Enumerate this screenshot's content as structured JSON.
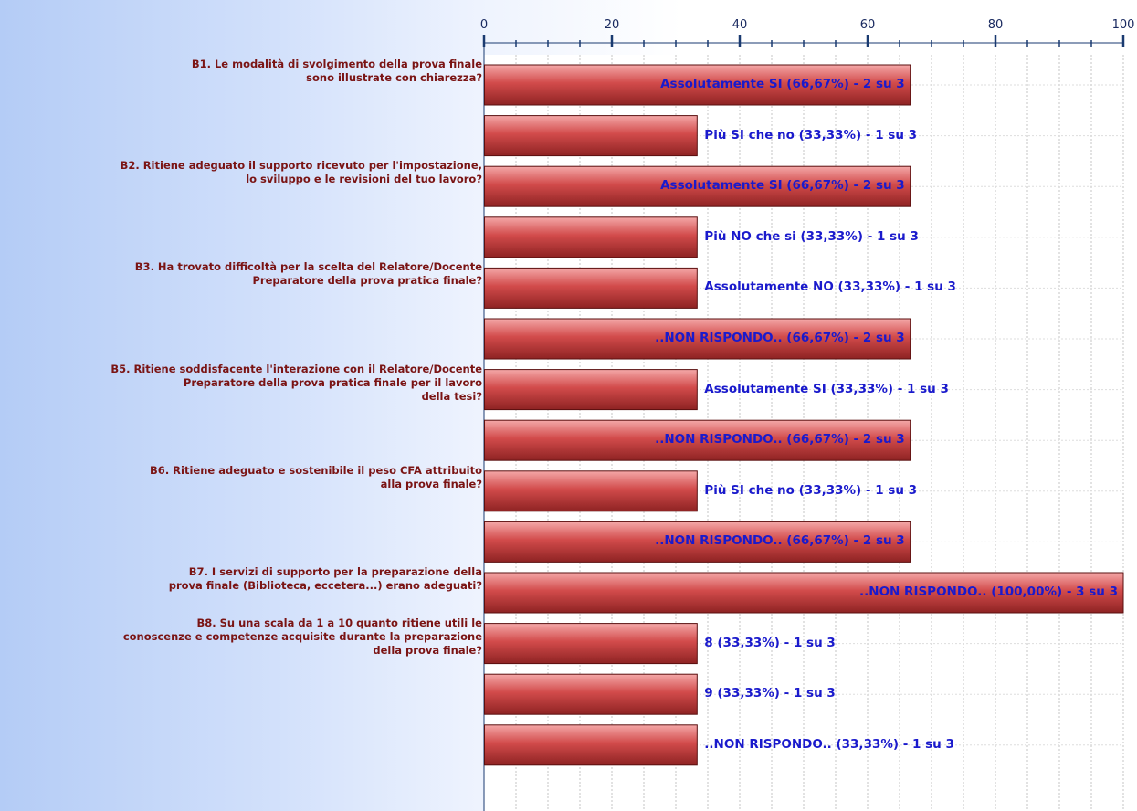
{
  "chart_data": {
    "type": "bar",
    "orientation": "horizontal",
    "xlim": [
      0,
      100
    ],
    "x_ticks": [
      "0",
      "20",
      "40",
      "60",
      "80",
      "100"
    ],
    "grid": true,
    "colors": {
      "bar": "#d24b4b",
      "bar_highlight": "#f4a8a8",
      "bar_border": "#5a0f0f",
      "question_text": "#7a1414",
      "bar_label_text": "#1a1acc",
      "grid": "#c4c4c4"
    },
    "questions": [
      {
        "text": "B1. Le modalità di svolgimento della prova finale\nsono illustrate con chiarezza?",
        "row": 0
      },
      {
        "text": "B2. Ritiene adeguato il supporto ricevuto per l'impostazione,\nlo sviluppo e le revisioni del tuo lavoro?",
        "row": 2
      },
      {
        "text": "B3. Ha trovato difficoltà per la scelta del Relatore/Docente\nPreparatore della prova pratica finale?",
        "row": 4
      },
      {
        "text": "B5. Ritiene soddisfacente l'interazione con il Relatore/Docente\nPreparatore della prova pratica finale per il lavoro\ndella tesi?",
        "row": 6
      },
      {
        "text": "B6. Ritiene adeguato e sostenibile il peso CFA attribuito\nalla prova finale?",
        "row": 8
      },
      {
        "text": "B7. I servizi di supporto per la preparazione della\nprova finale (Biblioteca, eccetera...) erano adeguati?",
        "row": 10
      },
      {
        "text": "B8. Su una scala da 1 a 10 quanto ritiene utili le\nconoscenze e competenze acquisite durante la preparazione\ndella prova finale?",
        "row": 11
      }
    ],
    "bars": [
      {
        "value": 66.67,
        "label": "Assolutamente SI (66,67%) - 2 su 3"
      },
      {
        "value": 33.33,
        "label": "Più SI che no (33,33%) - 1 su 3"
      },
      {
        "value": 66.67,
        "label": "Assolutamente SI (66,67%) - 2 su 3"
      },
      {
        "value": 33.33,
        "label": "Più NO che si (33,33%) - 1 su 3"
      },
      {
        "value": 33.33,
        "label": "Assolutamente NO (33,33%) - 1 su 3"
      },
      {
        "value": 66.67,
        "label": "..NON RISPONDO.. (66,67%) - 2 su 3"
      },
      {
        "value": 33.33,
        "label": "Assolutamente SI (33,33%) - 1 su 3"
      },
      {
        "value": 66.67,
        "label": "..NON RISPONDO.. (66,67%) - 2 su 3"
      },
      {
        "value": 33.33,
        "label": "Più SI che no (33,33%) - 1 su 3"
      },
      {
        "value": 66.67,
        "label": "..NON RISPONDO.. (66,67%) - 2 su 3"
      },
      {
        "value": 100.0,
        "label": "..NON RISPONDO.. (100,00%) - 3 su 3"
      },
      {
        "value": 33.33,
        "label": "8 (33,33%) - 1 su 3"
      },
      {
        "value": 33.33,
        "label": "9 (33,33%) - 1 su 3"
      },
      {
        "value": 33.33,
        "label": "..NON RISPONDO.. (33,33%) - 1 su 3"
      }
    ]
  }
}
